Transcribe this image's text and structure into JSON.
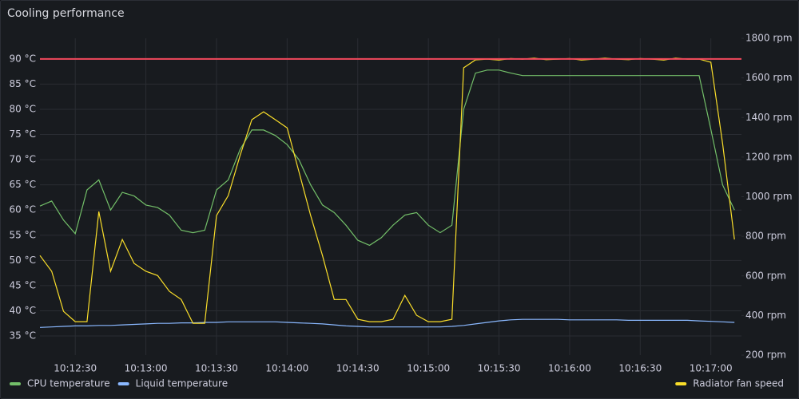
{
  "chart_data": {
    "type": "line",
    "title": "Cooling performance",
    "x": [
      "10:12:15",
      "10:12:20",
      "10:12:25",
      "10:12:30",
      "10:12:35",
      "10:12:40",
      "10:12:45",
      "10:12:50",
      "10:12:55",
      "10:13:00",
      "10:13:05",
      "10:13:10",
      "10:13:15",
      "10:13:20",
      "10:13:25",
      "10:13:30",
      "10:13:35",
      "10:13:40",
      "10:13:45",
      "10:13:50",
      "10:13:55",
      "10:14:00",
      "10:14:05",
      "10:14:10",
      "10:14:15",
      "10:14:20",
      "10:14:25",
      "10:14:30",
      "10:14:35",
      "10:14:40",
      "10:14:45",
      "10:14:50",
      "10:14:55",
      "10:15:00",
      "10:15:05",
      "10:15:10",
      "10:15:15",
      "10:15:20",
      "10:15:25",
      "10:15:30",
      "10:15:35",
      "10:15:40",
      "10:15:45",
      "10:15:50",
      "10:15:55",
      "10:16:00",
      "10:16:05",
      "10:16:10",
      "10:16:15",
      "10:16:20",
      "10:16:25",
      "10:16:30",
      "10:16:35",
      "10:16:40",
      "10:16:45",
      "10:16:50",
      "10:16:55",
      "10:17:00",
      "10:17:05",
      "10:17:10"
    ],
    "xlim": [
      "10:12:15",
      "10:17:13"
    ],
    "xticks": [
      "10:12:30",
      "10:13:00",
      "10:13:30",
      "10:14:00",
      "10:14:30",
      "10:15:00",
      "10:15:30",
      "10:16:00",
      "10:16:30",
      "10:17:00"
    ],
    "ylim": [
      31.2,
      94.1
    ],
    "yticks": [
      {
        "value": 35,
        "label": "35 °C"
      },
      {
        "value": 40,
        "label": "40 °C"
      },
      {
        "value": 45,
        "label": "45 °C"
      },
      {
        "value": 50,
        "label": "50 °C"
      },
      {
        "value": 55,
        "label": "55 °C"
      },
      {
        "value": 60,
        "label": "60 °C"
      },
      {
        "value": 65,
        "label": "65 °C"
      },
      {
        "value": 70,
        "label": "70 °C"
      },
      {
        "value": 75,
        "label": "75 °C"
      },
      {
        "value": 80,
        "label": "80 °C"
      },
      {
        "value": 85,
        "label": "85 °C"
      },
      {
        "value": 90,
        "label": "90 °C"
      }
    ],
    "y2lim": [
      200,
      1800
    ],
    "y2ticks": [
      {
        "value": 200,
        "label": "200 rpm"
      },
      {
        "value": 400,
        "label": "400 rpm"
      },
      {
        "value": 600,
        "label": "600 rpm"
      },
      {
        "value": 800,
        "label": "800 rpm"
      },
      {
        "value": 1000,
        "label": "1000 rpm"
      },
      {
        "value": 1200,
        "label": "1200 rpm"
      },
      {
        "value": 1400,
        "label": "1400 rpm"
      },
      {
        "value": 1600,
        "label": "1600 rpm"
      },
      {
        "value": 1800,
        "label": "1800 rpm"
      }
    ],
    "grid": true,
    "threshold": {
      "value": 90,
      "color": "#f2495c"
    },
    "legend": "bottom",
    "series": [
      {
        "name": "CPU temperature",
        "color": "#73bf69",
        "values": [
          60.8,
          61.8,
          58,
          55.3,
          64,
          66,
          60,
          63.5,
          62.8,
          61,
          60.5,
          59,
          56,
          55.5,
          56,
          64,
          66,
          72,
          75.9,
          75.9,
          74.8,
          73,
          70,
          65,
          61,
          59.5,
          57,
          54,
          53,
          54.5,
          57,
          59,
          59.5,
          57,
          55.5,
          57,
          80,
          87.2,
          87.8,
          87.8,
          87.2,
          86.7,
          86.7,
          86.7,
          86.7,
          86.7,
          86.7,
          86.7,
          86.7,
          86.7,
          86.7,
          86.7,
          86.7,
          86.7,
          86.7,
          86.7,
          86.7,
          76,
          65,
          60
        ]
      },
      {
        "name": "Liquid temperature",
        "color": "#8ab8ff",
        "values": [
          36.7,
          36.8,
          36.9,
          37,
          37,
          37.1,
          37.1,
          37.2,
          37.3,
          37.4,
          37.5,
          37.5,
          37.6,
          37.6,
          37.7,
          37.7,
          37.8,
          37.8,
          37.8,
          37.8,
          37.8,
          37.7,
          37.6,
          37.5,
          37.4,
          37.2,
          37,
          36.9,
          36.8,
          36.8,
          36.8,
          36.8,
          36.8,
          36.8,
          36.8,
          36.9,
          37.1,
          37.4,
          37.7,
          38,
          38.2,
          38.3,
          38.3,
          38.3,
          38.3,
          38.2,
          38.2,
          38.2,
          38.2,
          38.2,
          38.1,
          38.1,
          38.1,
          38.1,
          38.1,
          38.1,
          38,
          37.9,
          37.8,
          37.7
        ]
      },
      {
        "name": "Radiator fan speed",
        "color": "#fade2a",
        "axis": "y2",
        "values": [
          703,
          623,
          421,
          369,
          369,
          925,
          623,
          784,
          663,
          623,
          602,
          522,
          481,
          361,
          361,
          905,
          1006,
          1207,
          1389,
          1429,
          1389,
          1348,
          1127,
          905,
          703,
          481,
          481,
          381,
          369,
          369,
          381,
          502,
          401,
          369,
          369,
          381,
          1651,
          1691,
          1695,
          1690,
          1698,
          1695,
          1700,
          1692,
          1695,
          1698,
          1690,
          1695,
          1700,
          1695,
          1692,
          1698,
          1695,
          1690,
          1700,
          1695,
          1695,
          1679,
          1268,
          784
        ]
      }
    ]
  }
}
